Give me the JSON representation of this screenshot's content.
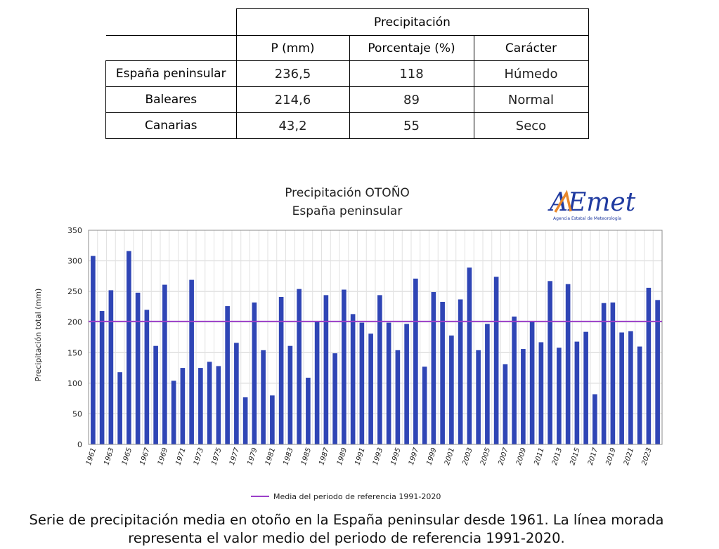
{
  "table": {
    "group_header": "Precipitación",
    "columns": [
      "P (mm)",
      "Porcentaje (%)",
      "Carácter"
    ],
    "rows": [
      {
        "label": "España peninsular",
        "p_mm": "236,5",
        "porcentaje": "118",
        "caracter": "Húmedo"
      },
      {
        "label": "Baleares",
        "p_mm": "214,6",
        "porcentaje": "89",
        "caracter": "Normal"
      },
      {
        "label": "Canarias",
        "p_mm": "43,2",
        "porcentaje": "55",
        "caracter": "Seco"
      }
    ]
  },
  "logo": {
    "text": "AEmet",
    "subtitle": "Agencia Estatal de Meteorología"
  },
  "chart_data": {
    "type": "bar",
    "title": "Precipitación OTOÑO",
    "subtitle": "España peninsular",
    "xlabel": "",
    "ylabel": "Precipitación total (mm)",
    "ylim": [
      0,
      350
    ],
    "yticks": [
      0,
      50,
      100,
      150,
      200,
      250,
      300,
      350
    ],
    "grid": true,
    "x_tick_labels": [
      "1961",
      "1963",
      "1965",
      "1967",
      "1969",
      "1971",
      "1973",
      "1975",
      "1977",
      "1979",
      "1981",
      "1983",
      "1985",
      "1987",
      "1989",
      "1991",
      "1993",
      "1995",
      "1997",
      "1999",
      "2001",
      "2003",
      "2005",
      "2007",
      "2009",
      "2011",
      "2013",
      "2015",
      "2017",
      "2019",
      "2021",
      "2023"
    ],
    "categories": [
      1961,
      1962,
      1963,
      1964,
      1965,
      1966,
      1967,
      1968,
      1969,
      1970,
      1971,
      1972,
      1973,
      1974,
      1975,
      1976,
      1977,
      1978,
      1979,
      1980,
      1981,
      1982,
      1983,
      1984,
      1985,
      1986,
      1987,
      1988,
      1989,
      1990,
      1991,
      1992,
      1993,
      1994,
      1995,
      1996,
      1997,
      1998,
      1999,
      2000,
      2001,
      2002,
      2003,
      2004,
      2005,
      2006,
      2007,
      2008,
      2009,
      2010,
      2011,
      2012,
      2013,
      2014,
      2015,
      2016,
      2017,
      2018,
      2019,
      2020,
      2021,
      2022,
      2023,
      2024
    ],
    "values": [
      308,
      218,
      252,
      118,
      316,
      248,
      220,
      161,
      261,
      104,
      125,
      269,
      125,
      135,
      128,
      226,
      166,
      77,
      232,
      154,
      80,
      241,
      161,
      254,
      109,
      201,
      244,
      149,
      253,
      213,
      199,
      181,
      244,
      199,
      154,
      197,
      271,
      127,
      249,
      233,
      178,
      237,
      289,
      154,
      197,
      274,
      131,
      209,
      156,
      201,
      167,
      267,
      158,
      262,
      168,
      184,
      82,
      231,
      232,
      183,
      185,
      160,
      256,
      236
    ],
    "bar_color": "#2f45b5",
    "reference_line": {
      "label": "Media del periodo de referencia 1991-2020",
      "value": 201,
      "color": "#9b3fc9"
    },
    "legend_position": "bottom"
  },
  "caption": {
    "line1": "Serie de precipitación media en otoño en la España peninsular desde 1961. La línea morada",
    "line2": "representa el valor medio del periodo de referencia 1991-2020."
  }
}
